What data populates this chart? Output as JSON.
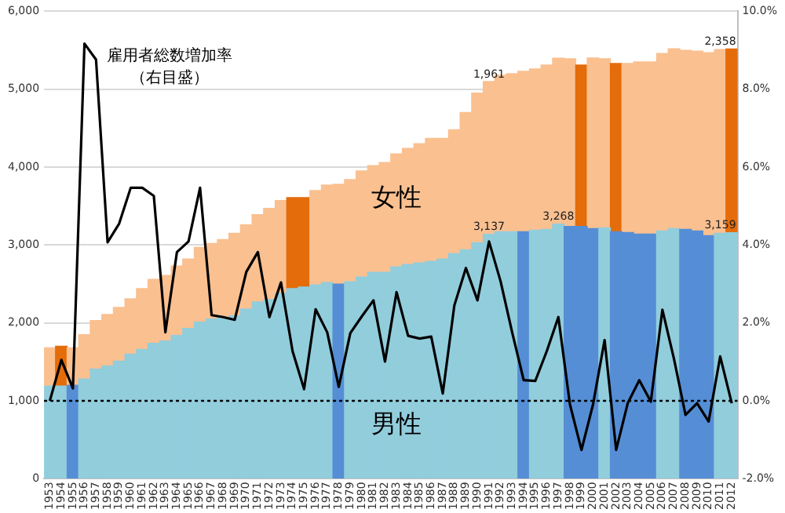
{
  "chart_data": {
    "type": "bar",
    "stacked": true,
    "grid": "y",
    "legend": false,
    "marker": "none",
    "categories": [
      "1953",
      "1954",
      "1955",
      "1956",
      "1957",
      "1958",
      "1959",
      "1960",
      "1961",
      "1962",
      "1963",
      "1964",
      "1965",
      "1966",
      "1967",
      "1968",
      "1969",
      "1970",
      "1971",
      "1972",
      "1973",
      "1974",
      "1975",
      "1976",
      "1977",
      "1978",
      "1979",
      "1980",
      "1981",
      "1982",
      "1983",
      "1984",
      "1985",
      "1986",
      "1987",
      "1988",
      "1989",
      "1990",
      "1991",
      "1992",
      "1993",
      "1994",
      "1995",
      "1996",
      "1997",
      "1998",
      "1999",
      "2000",
      "2001",
      "2002",
      "2003",
      "2004",
      "2005",
      "2006",
      "2007",
      "2008",
      "2009",
      "2010",
      "2011",
      "2012"
    ],
    "ylim": [
      0,
      6000
    ],
    "yticks": [
      {
        "value": 0,
        "label": "0"
      },
      {
        "value": 1000,
        "label": "1,000"
      },
      {
        "value": 2000,
        "label": "2,000"
      },
      {
        "value": 3000,
        "label": "3,000"
      },
      {
        "value": 4000,
        "label": "4,000"
      },
      {
        "value": 5000,
        "label": "5,000"
      },
      {
        "value": 6000,
        "label": "6,000"
      }
    ],
    "y2lim": [
      -2,
      10
    ],
    "y2ticks": [
      {
        "value": -2,
        "label": "-2.0%"
      },
      {
        "value": 0,
        "label": "0.0%"
      },
      {
        "value": 2,
        "label": "2.0%"
      },
      {
        "value": 4,
        "label": "4.0%"
      },
      {
        "value": 6,
        "label": "6.0%"
      },
      {
        "value": 8,
        "label": "8.0%"
      },
      {
        "value": 10,
        "label": "10.0%"
      }
    ],
    "ref_lines": [
      {
        "axis": "y2",
        "value": 0,
        "color": "#000000",
        "line_style": "dotted"
      }
    ],
    "annotations": [
      "（右目盛）"
    ],
    "series": [
      {
        "name": "男性",
        "values": [
          1190,
          1190,
          1200,
          1280,
          1410,
          1450,
          1510,
          1600,
          1660,
          1740,
          1770,
          1840,
          1930,
          2010,
          2050,
          2070,
          2090,
          2180,
          2270,
          2300,
          2380,
          2440,
          2460,
          2490,
          2520,
          2500,
          2530,
          2590,
          2650,
          2650,
          2720,
          2750,
          2770,
          2790,
          2820,
          2890,
          2940,
          3030,
          3137,
          3170,
          3170,
          3170,
          3190,
          3200,
          3268,
          3240,
          3240,
          3210,
          3220,
          3170,
          3160,
          3140,
          3140,
          3180,
          3210,
          3200,
          3180,
          3120,
          3150,
          3159
        ],
        "colors": [
          "#92cddc",
          "#92cddc",
          "#558ed5",
          "#92cddc",
          "#92cddc",
          "#92cddc",
          "#92cddc",
          "#92cddc",
          "#92cddc",
          "#92cddc",
          "#92cddc",
          "#92cddc",
          "#92cddc",
          "#92cddc",
          "#92cddc",
          "#92cddc",
          "#92cddc",
          "#92cddc",
          "#92cddc",
          "#92cddc",
          "#92cddc",
          "#92cddc",
          "#92cddc",
          "#92cddc",
          "#92cddc",
          "#558ed5",
          "#92cddc",
          "#92cddc",
          "#92cddc",
          "#92cddc",
          "#92cddc",
          "#92cddc",
          "#92cddc",
          "#92cddc",
          "#92cddc",
          "#92cddc",
          "#92cddc",
          "#92cddc",
          "#92cddc",
          "#92cddc",
          "#92cddc",
          "#558ed5",
          "#92cddc",
          "#92cddc",
          "#92cddc",
          "#558ed5",
          "#558ed5",
          "#558ed5",
          "#92cddc",
          "#558ed5",
          "#558ed5",
          "#558ed5",
          "#558ed5",
          "#92cddc",
          "#92cddc",
          "#558ed5",
          "#558ed5",
          "#558ed5",
          "#92cddc",
          "#92cddc"
        ],
        "value_labels": [
          null,
          null,
          null,
          null,
          null,
          null,
          null,
          null,
          null,
          null,
          null,
          null,
          null,
          null,
          null,
          null,
          null,
          null,
          null,
          null,
          null,
          null,
          null,
          null,
          null,
          null,
          null,
          null,
          null,
          null,
          null,
          null,
          null,
          null,
          null,
          null,
          null,
          null,
          "3,137",
          null,
          null,
          null,
          null,
          null,
          "3,268",
          null,
          null,
          null,
          null,
          null,
          null,
          null,
          null,
          null,
          null,
          null,
          null,
          null,
          null,
          "3,159"
        ]
      },
      {
        "name": "女性",
        "values": [
          490,
          510,
          480,
          570,
          620,
          660,
          690,
          710,
          780,
          820,
          840,
          890,
          890,
          960,
          970,
          1000,
          1060,
          1080,
          1120,
          1170,
          1190,
          1170,
          1150,
          1210,
          1250,
          1280,
          1310,
          1360,
          1370,
          1410,
          1450,
          1490,
          1530,
          1580,
          1550,
          1590,
          1760,
          1920,
          1961,
          2010,
          2030,
          2060,
          2070,
          2110,
          2130,
          2150,
          2070,
          2190,
          2170,
          2160,
          2170,
          2210,
          2210,
          2280,
          2310,
          2300,
          2310,
          2350,
          2360,
          2358
        ],
        "colors": [
          "#fac090",
          "#e46c0a",
          "#fac090",
          "#fac090",
          "#fac090",
          "#fac090",
          "#fac090",
          "#fac090",
          "#fac090",
          "#fac090",
          "#fac090",
          "#fac090",
          "#fac090",
          "#fac090",
          "#fac090",
          "#fac090",
          "#fac090",
          "#fac090",
          "#fac090",
          "#fac090",
          "#fac090",
          "#e46c0a",
          "#e46c0a",
          "#fac090",
          "#fac090",
          "#fac090",
          "#fac090",
          "#fac090",
          "#fac090",
          "#fac090",
          "#fac090",
          "#fac090",
          "#fac090",
          "#fac090",
          "#fac090",
          "#fac090",
          "#fac090",
          "#fac090",
          "#fac090",
          "#fac090",
          "#fac090",
          "#fac090",
          "#fac090",
          "#fac090",
          "#fac090",
          "#fac090",
          "#e46c0a",
          "#fac090",
          "#fac090",
          "#e46c0a",
          "#fac090",
          "#fac090",
          "#fac090",
          "#fac090",
          "#fac090",
          "#fac090",
          "#fac090",
          "#fac090",
          "#fac090",
          "#e46c0a"
        ],
        "value_labels": [
          null,
          null,
          null,
          null,
          null,
          null,
          null,
          null,
          null,
          null,
          null,
          null,
          null,
          null,
          null,
          null,
          null,
          null,
          null,
          null,
          null,
          null,
          null,
          null,
          null,
          null,
          null,
          null,
          null,
          null,
          null,
          null,
          null,
          null,
          null,
          null,
          null,
          null,
          "1,961",
          null,
          null,
          null,
          null,
          null,
          null,
          null,
          null,
          null,
          null,
          null,
          null,
          null,
          null,
          null,
          null,
          null,
          null,
          null,
          null,
          "2,358"
        ]
      },
      {
        "type": "line",
        "axis": "y2",
        "name": "雇用者総数増加率",
        "color": "#000000",
        "values": [
          0.0,
          1.05,
          0.32,
          9.17,
          8.76,
          4.07,
          4.55,
          5.47,
          5.47,
          5.26,
          1.76,
          3.82,
          4.09,
          5.47,
          2.2,
          2.15,
          2.08,
          3.31,
          3.82,
          2.15,
          3.04,
          1.28,
          0.3,
          2.35,
          1.76,
          0.36,
          1.74,
          2.17,
          2.58,
          1.01,
          2.79,
          1.67,
          1.6,
          1.65,
          0.19,
          2.45,
          3.41,
          2.58,
          4.09,
          3.07,
          1.76,
          0.53,
          0.51,
          1.28,
          2.15,
          -0.09,
          -1.26,
          -0.09,
          1.56,
          -1.26,
          -0.06,
          0.53,
          -0.02,
          2.34,
          1.08,
          -0.36,
          -0.06,
          -0.53,
          1.14,
          -0.06
        ]
      }
    ]
  }
}
